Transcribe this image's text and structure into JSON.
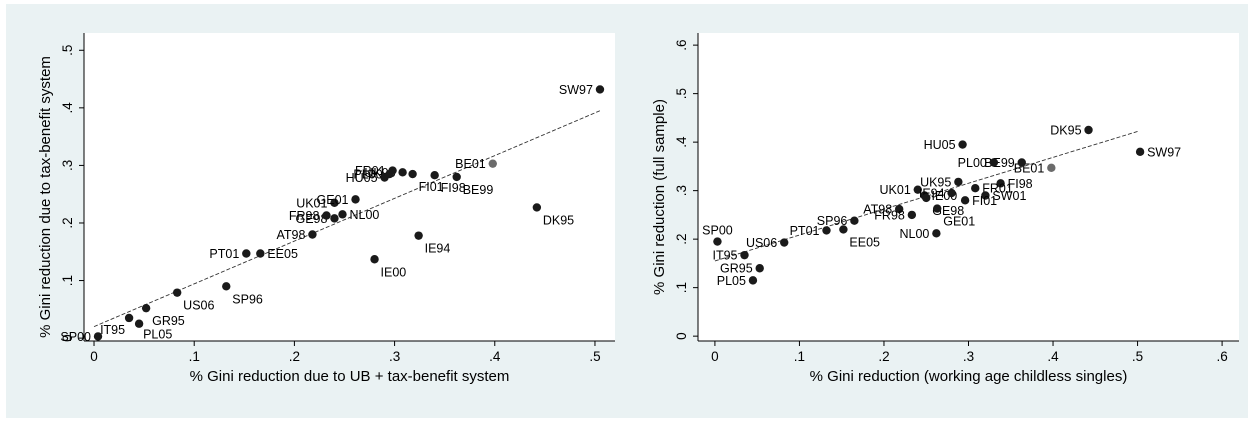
{
  "chart_data": [
    {
      "type": "scatter",
      "xlabel": "% Gini reduction due to UB + tax-benefit system",
      "ylabel": "% Gini reduction due to tax-benefit system",
      "xlim": [
        -0.01,
        0.52
      ],
      "ylim": [
        -0.005,
        0.53
      ],
      "xticks": [
        0,
        0.1,
        0.2,
        0.3,
        0.4,
        0.5
      ],
      "xticklabels": [
        "0",
        ".1",
        ".2",
        ".3",
        ".4",
        ".5"
      ],
      "yticks": [
        0,
        0.1,
        0.2,
        0.3,
        0.4,
        0.5
      ],
      "yticklabels": [
        "0",
        ".1",
        ".2",
        ".3",
        ".4",
        ".5"
      ],
      "grid": false,
      "fit_line": {
        "style": "dashed",
        "x": [
          0.0,
          0.505
        ],
        "y": [
          0.02,
          0.395
        ]
      },
      "points": [
        {
          "label": "SW97",
          "x": 0.505,
          "y": 0.432,
          "highlight": false,
          "label_pos": "left"
        },
        {
          "label": "BE01",
          "x": 0.398,
          "y": 0.303,
          "highlight": true,
          "label_pos": "left"
        },
        {
          "label": "BE99",
          "x": 0.362,
          "y": 0.28,
          "highlight": false,
          "label_pos": "below-right"
        },
        {
          "label": "FI98",
          "x": 0.34,
          "y": 0.283,
          "highlight": false,
          "label_pos": "below-right"
        },
        {
          "label": "DK95",
          "x": 0.442,
          "y": 0.227,
          "highlight": false,
          "label_pos": "below-right"
        },
        {
          "label": "IE94",
          "x": 0.324,
          "y": 0.178,
          "highlight": false,
          "label_pos": "below-right"
        },
        {
          "label": "IE00",
          "x": 0.28,
          "y": 0.137,
          "highlight": false,
          "label_pos": "below-right"
        },
        {
          "label": "FI01",
          "x": 0.318,
          "y": 0.285,
          "highlight": false,
          "label_pos": "below-right"
        },
        {
          "label": "UK95",
          "x": 0.308,
          "y": 0.288,
          "highlight": false,
          "label_pos": "left"
        },
        {
          "label": "FR01",
          "x": 0.298,
          "y": 0.291,
          "highlight": false,
          "label_pos": "left"
        },
        {
          "label": "PL00",
          "x": 0.295,
          "y": 0.285,
          "highlight": false,
          "label_pos": "left"
        },
        {
          "label": "HU05",
          "x": 0.29,
          "y": 0.279,
          "highlight": false,
          "label_pos": "left"
        },
        {
          "label": "UK01",
          "x": 0.24,
          "y": 0.235,
          "highlight": false,
          "label_pos": "left"
        },
        {
          "label": "GE01",
          "x": 0.261,
          "y": 0.241,
          "highlight": false,
          "label_pos": "left"
        },
        {
          "label": "NL00",
          "x": 0.248,
          "y": 0.215,
          "highlight": false,
          "label_pos": "right"
        },
        {
          "label": "GE98",
          "x": 0.24,
          "y": 0.208,
          "highlight": false,
          "label_pos": "left"
        },
        {
          "label": "FR98",
          "x": 0.232,
          "y": 0.213,
          "highlight": false,
          "label_pos": "left"
        },
        {
          "label": "AT98",
          "x": 0.218,
          "y": 0.18,
          "highlight": false,
          "label_pos": "left"
        },
        {
          "label": "PT01",
          "x": 0.152,
          "y": 0.147,
          "highlight": false,
          "label_pos": "left"
        },
        {
          "label": "EE05",
          "x": 0.166,
          "y": 0.147,
          "highlight": false,
          "label_pos": "right"
        },
        {
          "label": "SP96",
          "x": 0.132,
          "y": 0.09,
          "highlight": false,
          "label_pos": "below-right"
        },
        {
          "label": "US06",
          "x": 0.083,
          "y": 0.079,
          "highlight": false,
          "label_pos": "below-right"
        },
        {
          "label": "GR95",
          "x": 0.052,
          "y": 0.052,
          "highlight": false,
          "label_pos": "below-right"
        },
        {
          "label": "IT95",
          "x": 0.035,
          "y": 0.035,
          "highlight": false,
          "label_pos": "below-left"
        },
        {
          "label": "PL05",
          "x": 0.045,
          "y": 0.025,
          "highlight": false,
          "label_pos": "below"
        },
        {
          "label": "SP00",
          "x": 0.004,
          "y": 0.003,
          "highlight": false,
          "label_pos": "left"
        }
      ]
    },
    {
      "type": "scatter",
      "xlabel": "% Gini reduction (working age childless singles)",
      "ylabel": "% Gini reduction (full sample)",
      "xlim": [
        -0.02,
        0.62
      ],
      "ylim": [
        -0.01,
        0.625
      ],
      "xticks": [
        0,
        0.1,
        0.2,
        0.3,
        0.4,
        0.5,
        0.6
      ],
      "xticklabels": [
        "0",
        ".1",
        ".2",
        ".3",
        ".4",
        ".5",
        ".6"
      ],
      "yticks": [
        0,
        0.1,
        0.2,
        0.3,
        0.4,
        0.5,
        0.6
      ],
      "yticklabels": [
        "0",
        ".1",
        ".2",
        ".3",
        ".4",
        ".5",
        ".6"
      ],
      "grid": false,
      "fit_line": {
        "style": "dashed",
        "x": [
          0.0,
          0.5
        ],
        "y": [
          0.155,
          0.422
        ]
      },
      "points": [
        {
          "label": "DK95",
          "x": 0.442,
          "y": 0.425,
          "highlight": false,
          "label_pos": "left"
        },
        {
          "label": "SW97",
          "x": 0.503,
          "y": 0.38,
          "highlight": false,
          "label_pos": "right"
        },
        {
          "label": "HU05",
          "x": 0.293,
          "y": 0.395,
          "highlight": false,
          "label_pos": "left"
        },
        {
          "label": "BE01",
          "x": 0.398,
          "y": 0.347,
          "highlight": true,
          "label_pos": "left"
        },
        {
          "label": "BE99",
          "x": 0.363,
          "y": 0.358,
          "highlight": false,
          "label_pos": "left"
        },
        {
          "label": "PL00",
          "x": 0.33,
          "y": 0.358,
          "highlight": false,
          "label_pos": "left"
        },
        {
          "label": "FI98",
          "x": 0.338,
          "y": 0.315,
          "highlight": false,
          "label_pos": "right"
        },
        {
          "label": "UK95",
          "x": 0.288,
          "y": 0.318,
          "highlight": false,
          "label_pos": "left"
        },
        {
          "label": "FR01",
          "x": 0.308,
          "y": 0.305,
          "highlight": false,
          "label_pos": "right"
        },
        {
          "label": "SW01",
          "x": 0.32,
          "y": 0.29,
          "highlight": false,
          "label_pos": "right"
        },
        {
          "label": "FI01",
          "x": 0.296,
          "y": 0.28,
          "highlight": false,
          "label_pos": "right"
        },
        {
          "label": "UK01",
          "x": 0.24,
          "y": 0.302,
          "highlight": false,
          "label_pos": "left"
        },
        {
          "label": "IE00",
          "x": 0.248,
          "y": 0.29,
          "highlight": false,
          "label_pos": "right"
        },
        {
          "label": "IE94",
          "x": 0.28,
          "y": 0.295,
          "highlight": false,
          "label_pos": "left"
        },
        {
          "label": "GE98",
          "x": 0.25,
          "y": 0.285,
          "highlight": false,
          "label_pos": "below-right"
        },
        {
          "label": "AT98",
          "x": 0.218,
          "y": 0.262,
          "highlight": false,
          "label_pos": "left"
        },
        {
          "label": "FR98",
          "x": 0.233,
          "y": 0.25,
          "highlight": false,
          "label_pos": "left"
        },
        {
          "label": "GE01",
          "x": 0.263,
          "y": 0.263,
          "highlight": false,
          "label_pos": "below-right"
        },
        {
          "label": "NL00",
          "x": 0.262,
          "y": 0.212,
          "highlight": false,
          "label_pos": "left"
        },
        {
          "label": "EE05",
          "x": 0.152,
          "y": 0.22,
          "highlight": false,
          "label_pos": "below-right"
        },
        {
          "label": "SP96",
          "x": 0.165,
          "y": 0.238,
          "highlight": false,
          "label_pos": "left"
        },
        {
          "label": "PT01",
          "x": 0.132,
          "y": 0.218,
          "highlight": false,
          "label_pos": "left"
        },
        {
          "label": "US06",
          "x": 0.082,
          "y": 0.193,
          "highlight": false,
          "label_pos": "left"
        },
        {
          "label": "SP00",
          "x": 0.003,
          "y": 0.195,
          "highlight": false,
          "label_pos": "above"
        },
        {
          "label": "IT95",
          "x": 0.035,
          "y": 0.167,
          "highlight": false,
          "label_pos": "left"
        },
        {
          "label": "GR95",
          "x": 0.053,
          "y": 0.14,
          "highlight": false,
          "label_pos": "left"
        },
        {
          "label": "PL05",
          "x": 0.045,
          "y": 0.115,
          "highlight": false,
          "label_pos": "left"
        }
      ]
    }
  ]
}
